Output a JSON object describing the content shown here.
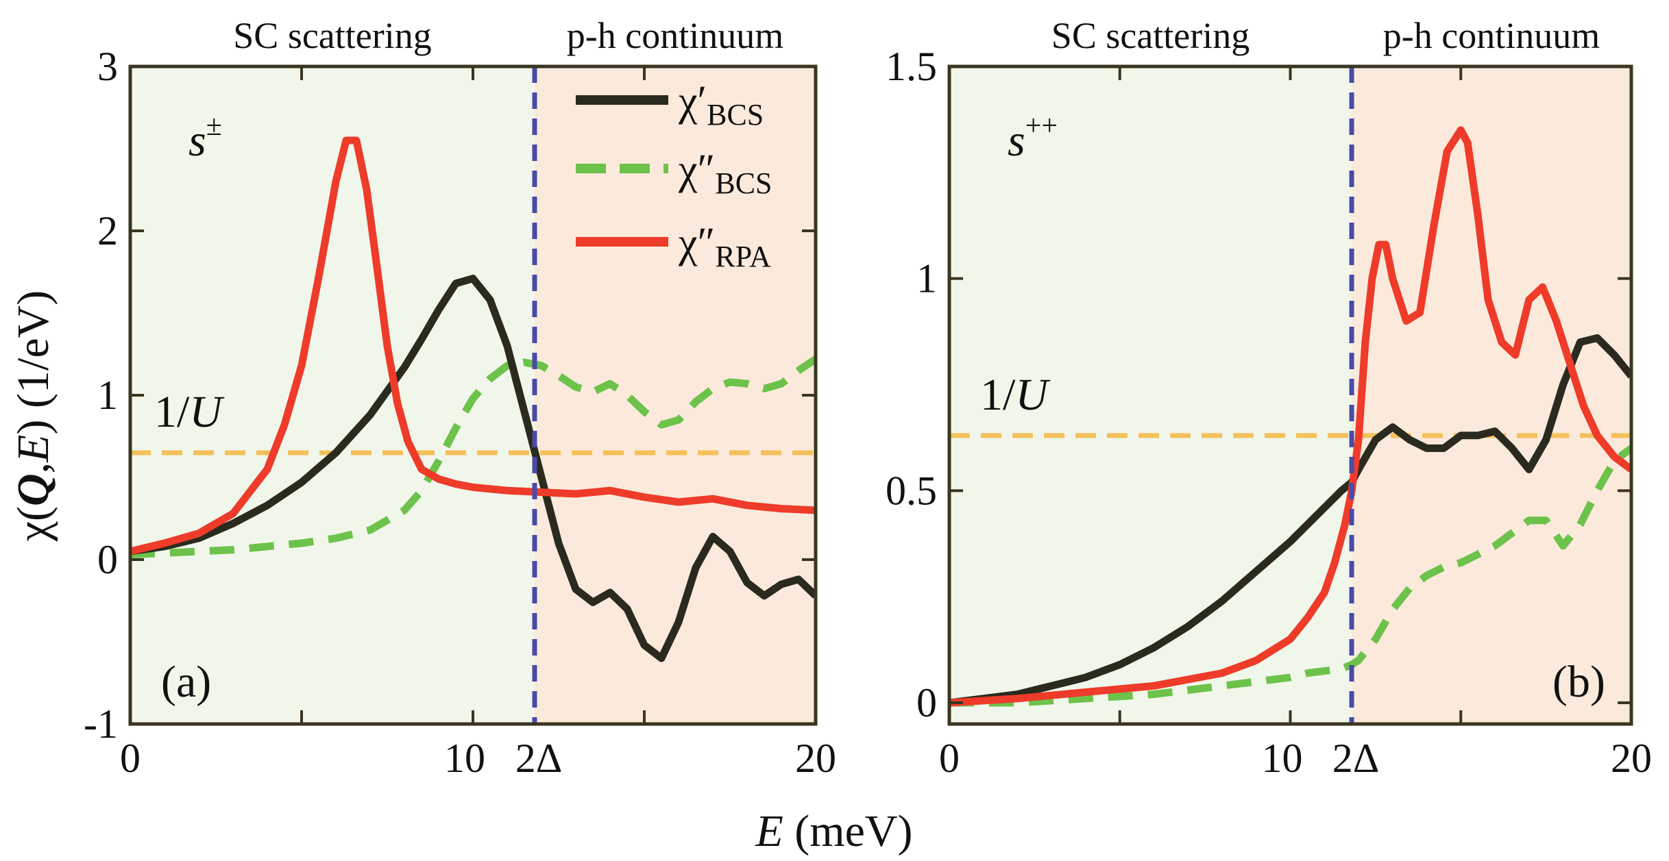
{
  "figure": {
    "ylabel": {
      "chi": "χ(",
      "Q": "Q",
      "comma": ",",
      "E": "E",
      "close": ")",
      "unit": " (1/eV)"
    },
    "xlabel": {
      "E": "E",
      "unit": " (meV)"
    },
    "delta_tick": "2Δ",
    "region_left": "SC scattering",
    "region_right": "p-h continuum",
    "threshold_label": "1/U",
    "threshold_label_parts": {
      "one": "1/",
      "U": "U"
    }
  },
  "legend": [
    {
      "symbol": "χ′",
      "subscript": "BCS",
      "color": "#2a2a1e",
      "style": "solid"
    },
    {
      "symbol": "χ″",
      "subscript": "BCS",
      "color": "#6cc24a",
      "style": "dashed"
    },
    {
      "symbol": "χ″",
      "subscript": "RPA",
      "color": "#ee3b2a",
      "style": "solid"
    }
  ],
  "colors": {
    "sc_region": "#f1f6ea",
    "ph_region": "#fbeadb",
    "threshold_line": "#f5c05a",
    "gap_line": "#4a4aa8",
    "axis": "#3a3520"
  },
  "chart_data": [
    {
      "type": "line",
      "panel_label": "(a)",
      "symmetry": "s",
      "symmetry_sup": "±",
      "xlim": [
        0,
        20
      ],
      "ylim": [
        -1,
        3
      ],
      "xticks": [
        0,
        10,
        20
      ],
      "xticklabels": [
        "0",
        "10",
        "20"
      ],
      "yticks": [
        -1,
        0,
        1,
        2,
        3
      ],
      "yticklabels": [
        "-1",
        "0",
        "1",
        "2",
        "3"
      ],
      "gap_2delta": 11.8,
      "inv_U": 0.65,
      "series": [
        {
          "name": "χ′_BCS",
          "x": [
            0,
            1,
            2,
            3,
            4,
            5,
            6,
            7,
            8,
            8.5,
            9,
            9.5,
            10,
            10.5,
            11,
            11.5,
            12,
            12.5,
            13,
            13.5,
            14,
            14.5,
            15,
            15.5,
            16,
            16.5,
            17,
            17.5,
            18,
            18.5,
            19,
            19.5,
            20
          ],
          "values": [
            0.05,
            0.08,
            0.13,
            0.22,
            0.33,
            0.47,
            0.65,
            0.88,
            1.17,
            1.34,
            1.52,
            1.68,
            1.71,
            1.58,
            1.3,
            0.9,
            0.5,
            0.1,
            -0.18,
            -0.26,
            -0.2,
            -0.3,
            -0.52,
            -0.6,
            -0.38,
            -0.05,
            0.14,
            0.05,
            -0.14,
            -0.22,
            -0.15,
            -0.12,
            -0.22
          ]
        },
        {
          "name": "χ″_BCS",
          "x": [
            0,
            1,
            2,
            3,
            4,
            5,
            6,
            7,
            8,
            8.5,
            9,
            9.5,
            10,
            10.5,
            11,
            11.5,
            12,
            12.5,
            13,
            13.5,
            14,
            14.5,
            15,
            15.5,
            16,
            16.5,
            17,
            17.5,
            18,
            18.5,
            19,
            19.5,
            20
          ],
          "values": [
            0.03,
            0.04,
            0.05,
            0.06,
            0.08,
            0.1,
            0.13,
            0.18,
            0.3,
            0.42,
            0.6,
            0.8,
            0.98,
            1.1,
            1.18,
            1.2,
            1.18,
            1.12,
            1.05,
            1.02,
            1.07,
            1.0,
            0.9,
            0.82,
            0.85,
            0.96,
            1.04,
            1.08,
            1.07,
            1.04,
            1.07,
            1.15,
            1.22
          ]
        },
        {
          "name": "χ″_RPA",
          "x": [
            0,
            1,
            2,
            3,
            4,
            4.5,
            5,
            5.5,
            6,
            6.3,
            6.6,
            6.9,
            7.2,
            7.5,
            7.8,
            8.1,
            8.5,
            9,
            9.5,
            10,
            11,
            12,
            13,
            14,
            15,
            16,
            17,
            18,
            19,
            20
          ],
          "values": [
            0.05,
            0.1,
            0.16,
            0.28,
            0.55,
            0.82,
            1.18,
            1.72,
            2.3,
            2.55,
            2.55,
            2.25,
            1.78,
            1.3,
            0.95,
            0.72,
            0.55,
            0.49,
            0.46,
            0.44,
            0.42,
            0.41,
            0.4,
            0.42,
            0.38,
            0.35,
            0.37,
            0.33,
            0.31,
            0.3
          ]
        }
      ]
    },
    {
      "type": "line",
      "panel_label": "(b)",
      "symmetry": "s",
      "symmetry_sup": "++",
      "xlim": [
        0,
        20
      ],
      "ylim": [
        -0.05,
        1.5
      ],
      "xticks": [
        0,
        10,
        20
      ],
      "xticklabels": [
        "0",
        "10",
        "20"
      ],
      "yticks": [
        0,
        0.5,
        1,
        1.5
      ],
      "yticklabels": [
        "0",
        "0.5",
        "1",
        "1.5"
      ],
      "gap_2delta": 11.8,
      "inv_U": 0.63,
      "series": [
        {
          "name": "χ′_BCS",
          "x": [
            0,
            1,
            2,
            3,
            4,
            5,
            6,
            7,
            8,
            9,
            10,
            10.5,
            11,
            11.5,
            11.8,
            12,
            12.5,
            13,
            13.5,
            14,
            14.5,
            15,
            15.5,
            16,
            16.5,
            17,
            17.5,
            18,
            18.5,
            19,
            19.5,
            20
          ],
          "values": [
            0.0,
            0.01,
            0.02,
            0.04,
            0.06,
            0.09,
            0.13,
            0.18,
            0.24,
            0.31,
            0.38,
            0.42,
            0.46,
            0.5,
            0.52,
            0.55,
            0.62,
            0.65,
            0.62,
            0.6,
            0.6,
            0.63,
            0.63,
            0.64,
            0.6,
            0.55,
            0.62,
            0.75,
            0.85,
            0.86,
            0.82,
            0.77
          ]
        },
        {
          "name": "χ″_BCS",
          "x": [
            0,
            1,
            2,
            3,
            4,
            5,
            6,
            7,
            8,
            9,
            10,
            10.5,
            11,
            11.5,
            11.8,
            12,
            12.5,
            13,
            13.5,
            14,
            14.5,
            15,
            15.5,
            16,
            16.5,
            17,
            17.5,
            18,
            18.5,
            19,
            19.5,
            20
          ],
          "values": [
            0.0,
            0.0,
            0.0,
            0.005,
            0.01,
            0.015,
            0.02,
            0.03,
            0.04,
            0.05,
            0.06,
            0.07,
            0.075,
            0.08,
            0.09,
            0.1,
            0.15,
            0.22,
            0.27,
            0.3,
            0.32,
            0.33,
            0.35,
            0.37,
            0.4,
            0.43,
            0.43,
            0.37,
            0.42,
            0.5,
            0.57,
            0.6
          ]
        },
        {
          "name": "χ″_RPA",
          "x": [
            0,
            2,
            4,
            6,
            8,
            9,
            10,
            10.5,
            11,
            11.3,
            11.6,
            11.8,
            12,
            12.2,
            12.4,
            12.6,
            12.8,
            13,
            13.4,
            13.8,
            14.2,
            14.6,
            15,
            15.2,
            15.5,
            15.8,
            16.2,
            16.6,
            17,
            17.4,
            17.8,
            18.2,
            18.6,
            19,
            19.5,
            20
          ],
          "values": [
            0.0,
            0.01,
            0.025,
            0.04,
            0.07,
            0.1,
            0.15,
            0.2,
            0.26,
            0.33,
            0.42,
            0.5,
            0.62,
            0.85,
            1.0,
            1.08,
            1.08,
            1.0,
            0.9,
            0.92,
            1.12,
            1.3,
            1.35,
            1.32,
            1.15,
            0.95,
            0.85,
            0.82,
            0.95,
            0.98,
            0.9,
            0.8,
            0.7,
            0.63,
            0.58,
            0.55
          ]
        }
      ]
    }
  ]
}
